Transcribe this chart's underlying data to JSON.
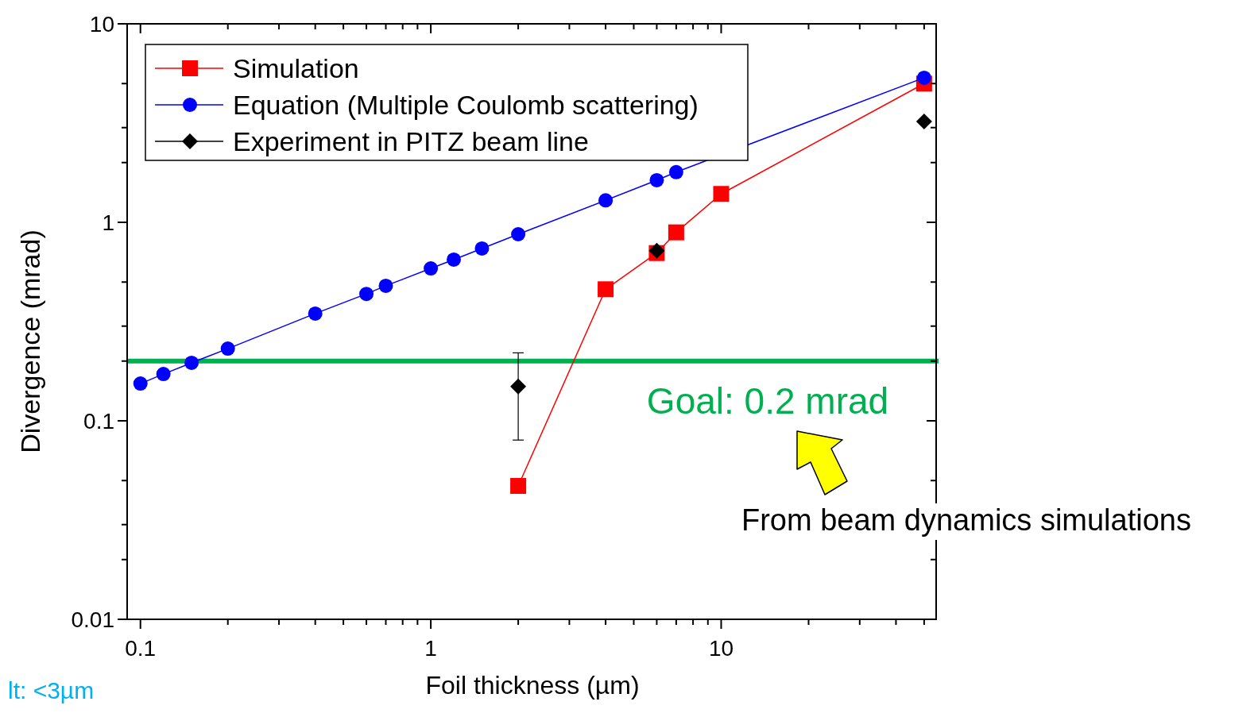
{
  "chart_data": {
    "type": "line",
    "xlabel": "Foil thickness (µm)",
    "ylabel": "Divergence (mrad)",
    "log": "xy",
    "xlim": [
      0.09,
      55
    ],
    "ylim": [
      0.01,
      10
    ],
    "xticks": [
      {
        "value": 0.1,
        "label": "0.1"
      },
      {
        "value": 0.2,
        "label": null
      },
      {
        "value": 0.3,
        "label": null
      },
      {
        "value": 0.4,
        "label": null
      },
      {
        "value": 0.5,
        "label": null
      },
      {
        "value": 0.6,
        "label": null
      },
      {
        "value": 0.7,
        "label": null
      },
      {
        "value": 0.8,
        "label": null
      },
      {
        "value": 0.9,
        "label": null
      },
      1,
      {
        "value": 2,
        "label": null
      },
      {
        "value": 3,
        "label": null
      },
      {
        "value": 4,
        "label": null
      },
      {
        "value": 5,
        "label": null
      },
      {
        "value": 6,
        "label": null
      },
      {
        "value": 7,
        "label": null
      },
      {
        "value": 8,
        "label": null
      },
      {
        "value": 9,
        "label": null
      },
      10,
      {
        "value": 20,
        "label": null
      },
      {
        "value": 30,
        "label": null
      },
      {
        "value": 40,
        "label": null
      },
      {
        "value": 50,
        "label": null
      }
    ],
    "yticks": [
      0.01,
      {
        "value": 0.02,
        "label": null
      },
      {
        "value": 0.03,
        "label": null
      },
      {
        "value": 0.05,
        "label": null
      },
      0.1,
      {
        "value": 0.2,
        "label": null
      },
      {
        "value": 0.3,
        "label": null
      },
      {
        "value": 0.5,
        "label": null
      },
      1,
      {
        "value": 2,
        "label": null
      },
      {
        "value": 3,
        "label": null
      },
      {
        "value": 5,
        "label": null
      },
      10
    ],
    "legend": "top left",
    "grid": false,
    "series": [
      {
        "name": "Simulation",
        "marker": "square",
        "color": "#ff0000",
        "x": [
          2,
          4,
          6,
          7,
          10,
          50
        ],
        "values": [
          0.047,
          0.46,
          0.7,
          0.89,
          1.39,
          5.0
        ]
      },
      {
        "name": "Equation (Multiple Coulomb scattering)",
        "marker": "circle",
        "color": "#0000ff",
        "x": [
          0.1,
          0.12,
          0.15,
          0.2,
          0.4,
          0.6,
          0.7,
          1,
          1.2,
          1.5,
          2,
          4,
          6,
          7,
          10,
          50
        ],
        "values": [
          0.154,
          0.172,
          0.196,
          0.231,
          0.347,
          0.436,
          0.479,
          0.586,
          0.649,
          0.738,
          0.871,
          1.29,
          1.63,
          1.79,
          null,
          5.35
        ]
      },
      {
        "name": "Experiment in PITZ beam line",
        "type": "scatter",
        "marker": "diamond",
        "color": "#000000",
        "x": [
          2,
          6,
          50
        ],
        "values": [
          0.149,
          0.72,
          3.22
        ],
        "errors": [
          [
            0.08,
            0.22
          ],
          null,
          null
        ]
      }
    ],
    "ref_lines": [
      {
        "axis": "y",
        "value": 0.2,
        "label": "Goal: 0.2 mrad",
        "color": "#00b050"
      }
    ],
    "annotations": [
      "From beam dynamics simulations",
      "lt: <3µm"
    ]
  }
}
